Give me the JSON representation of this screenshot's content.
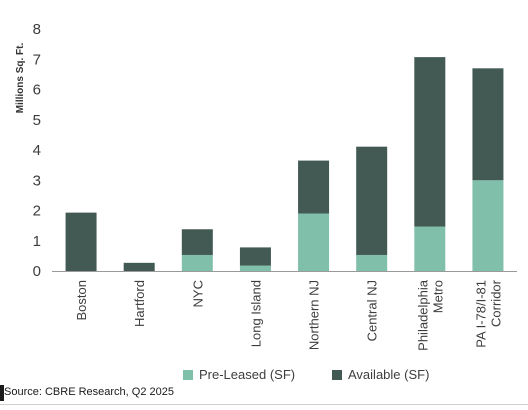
{
  "chart_data": {
    "type": "bar",
    "stacked": true,
    "categories": [
      "Boston",
      "Hartford",
      "NYC",
      "Long Island",
      "Northern NJ",
      "Central NJ",
      "Philadelphia Metro",
      "PA I-78/I-81 Corridor"
    ],
    "category_lines": [
      [
        "Boston"
      ],
      [
        "Hartford"
      ],
      [
        "NYC"
      ],
      [
        "Long Island"
      ],
      [
        "Northern NJ"
      ],
      [
        "Central NJ"
      ],
      [
        "Philadelphia",
        "Metro"
      ],
      [
        "PA I-78/I-81",
        "Corridor"
      ]
    ],
    "series": [
      {
        "name": "Pre-Leased (SF)",
        "color": "#80bfa9",
        "values": [
          0,
          0,
          0.53,
          0.18,
          1.9,
          0.53,
          1.47,
          3.0
        ]
      },
      {
        "name": "Available (SF)",
        "color": "#435954",
        "values": [
          1.93,
          0.27,
          0.85,
          0.6,
          1.75,
          3.58,
          5.6,
          3.7
        ]
      }
    ],
    "ylabel": "Millions Sq. Ft.",
    "ylim": [
      0,
      8
    ],
    "yticks": [
      0,
      1,
      2,
      3,
      4,
      5,
      6,
      7,
      8
    ],
    "grid": false,
    "legend_position": "bottom"
  },
  "legend": {
    "pre_leased": "Pre-Leased (SF)",
    "available": "Available (SF)"
  },
  "source": "Source: CBRE Research, Q2 2025"
}
